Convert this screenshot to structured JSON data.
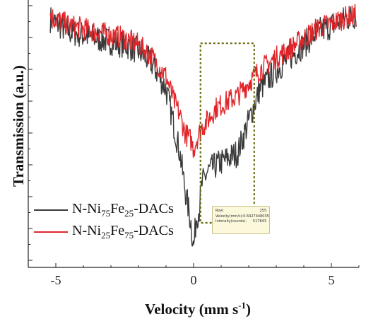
{
  "chart_data": {
    "type": "line",
    "ylabel": "Transmission (a.u.)",
    "xlabel": "Velocity (mm s",
    "xlabel_sup": "-1",
    "xlim": [
      -6,
      6
    ],
    "ylim": [
      0.8,
      1.01
    ],
    "x_ticks": [
      -5,
      0,
      5
    ],
    "x_tick_labels": [
      "-5",
      "0",
      "5"
    ],
    "legend_position": "lower-left",
    "series": [
      {
        "name": "N-Ni75Fe25-DACs",
        "label_parts": [
          "N-Ni",
          "75",
          "Fe",
          "25",
          "-DACs"
        ],
        "color": "#3a3a3a",
        "x": [
          -5.2,
          -4.5,
          -3.5,
          -2.5,
          -2.0,
          -1.5,
          -1.0,
          -0.7,
          -0.5,
          -0.3,
          -0.1,
          0.0,
          0.1,
          0.2,
          0.3,
          0.5,
          0.8,
          1.2,
          1.6,
          2.0,
          2.4,
          3.0,
          3.5,
          4.0,
          4.5,
          5.0,
          5.5,
          5.9
        ],
        "y": [
          0.995,
          0.985,
          0.98,
          0.975,
          0.97,
          0.96,
          0.94,
          0.91,
          0.89,
          0.86,
          0.835,
          0.815,
          0.84,
          0.845,
          0.865,
          0.875,
          0.88,
          0.885,
          0.89,
          0.915,
          0.94,
          0.955,
          0.965,
          0.975,
          0.985,
          0.99,
          0.995,
          0.998
        ]
      },
      {
        "name": "N-Ni25Fe75-DACs",
        "label_parts": [
          "N-Ni",
          "25",
          "Fe",
          "75",
          "-DACs"
        ],
        "color": "#e0262a",
        "x": [
          -5.2,
          -4.5,
          -3.5,
          -2.5,
          -2.0,
          -1.5,
          -1.0,
          -0.7,
          -0.5,
          -0.3,
          -0.1,
          0.0,
          0.1,
          0.2,
          0.3,
          0.5,
          0.8,
          1.2,
          1.6,
          2.0,
          2.4,
          3.0,
          3.5,
          4.0,
          4.5,
          5.0,
          5.5,
          5.9
        ],
        "y": [
          0.997,
          0.99,
          0.985,
          0.98,
          0.975,
          0.965,
          0.95,
          0.93,
          0.92,
          0.905,
          0.9,
          0.893,
          0.9,
          0.905,
          0.91,
          0.915,
          0.925,
          0.93,
          0.935,
          0.945,
          0.955,
          0.965,
          0.972,
          0.98,
          0.988,
          0.992,
          0.996,
          0.998
        ]
      }
    ],
    "highlight_box": {
      "x": [
        0.25,
        2.2
      ],
      "y": [
        0.835,
        0.976
      ],
      "color": "#6b6b10"
    }
  },
  "tooltip": {
    "rows": [
      {
        "label": "Row:",
        "value": "255"
      },
      {
        "label": "Velocity(mm/s):",
        "value": "0.6427448035"
      },
      {
        "label": "Intensity(counts):",
        "value": "517643"
      }
    ]
  }
}
